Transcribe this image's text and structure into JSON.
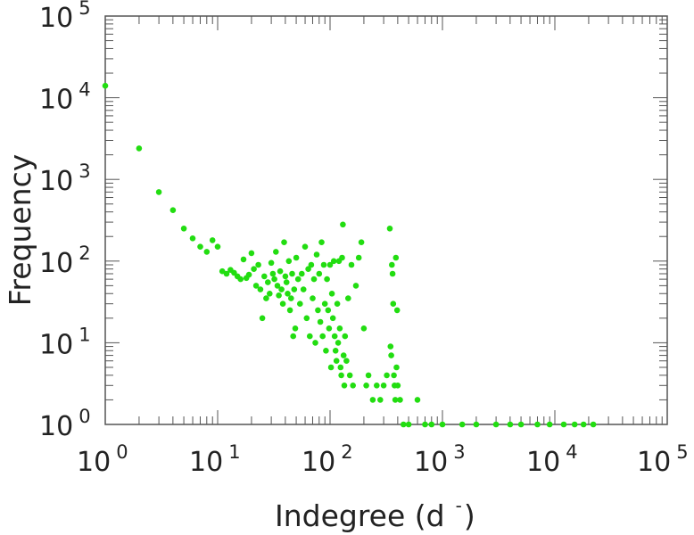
{
  "chart_data": {
    "type": "scatter",
    "title": "",
    "xlabel": "Indegree (d",
    "xlabel_superscript": "-",
    "xlabel_close": ")",
    "ylabel": "Frequency",
    "xscale": "log",
    "yscale": "log",
    "xlim": [
      1,
      100000
    ],
    "ylim": [
      1,
      100000
    ],
    "grid": false,
    "marker_color": "#22dd11",
    "x_tick_labels": [
      {
        "base": "10",
        "exp": "0"
      },
      {
        "base": "10",
        "exp": "1"
      },
      {
        "base": "10",
        "exp": "2"
      },
      {
        "base": "10",
        "exp": "3"
      },
      {
        "base": "10",
        "exp": "4"
      },
      {
        "base": "10",
        "exp": "5"
      }
    ],
    "y_tick_labels": [
      {
        "base": "10",
        "exp": "0"
      },
      {
        "base": "10",
        "exp": "1"
      },
      {
        "base": "10",
        "exp": "2"
      },
      {
        "base": "10",
        "exp": "3"
      },
      {
        "base": "10",
        "exp": "4"
      },
      {
        "base": "10",
        "exp": "5"
      }
    ],
    "points": [
      [
        1,
        14000
      ],
      [
        2,
        2400
      ],
      [
        3,
        700
      ],
      [
        4,
        420
      ],
      [
        5,
        250
      ],
      [
        6,
        190
      ],
      [
        7,
        150
      ],
      [
        8,
        130
      ],
      [
        9,
        180
      ],
      [
        10,
        150
      ],
      [
        11,
        75
      ],
      [
        12,
        70
      ],
      [
        13,
        78
      ],
      [
        14,
        72
      ],
      [
        15,
        65
      ],
      [
        16,
        60
      ],
      [
        17,
        105
      ],
      [
        18,
        62
      ],
      [
        19,
        68
      ],
      [
        20,
        125
      ],
      [
        21,
        80
      ],
      [
        22,
        50
      ],
      [
        23,
        90
      ],
      [
        24,
        45
      ],
      [
        25,
        20
      ],
      [
        26,
        65
      ],
      [
        27,
        35
      ],
      [
        28,
        55
      ],
      [
        29,
        40
      ],
      [
        30,
        95
      ],
      [
        31,
        70
      ],
      [
        32,
        60
      ],
      [
        33,
        130
      ],
      [
        34,
        50
      ],
      [
        35,
        38
      ],
      [
        36,
        75
      ],
      [
        37,
        45
      ],
      [
        38,
        30
      ],
      [
        39,
        170
      ],
      [
        40,
        65
      ],
      [
        41,
        55
      ],
      [
        42,
        40
      ],
      [
        43,
        100
      ],
      [
        44,
        25
      ],
      [
        45,
        35
      ],
      [
        46,
        70
      ],
      [
        47,
        12
      ],
      [
        48,
        45
      ],
      [
        49,
        15
      ],
      [
        50,
        110
      ],
      [
        52,
        60
      ],
      [
        54,
        30
      ],
      [
        56,
        70
      ],
      [
        58,
        45
      ],
      [
        60,
        150
      ],
      [
        62,
        20
      ],
      [
        64,
        80
      ],
      [
        66,
        12
      ],
      [
        68,
        90
      ],
      [
        70,
        35
      ],
      [
        72,
        60
      ],
      [
        74,
        10
      ],
      [
        76,
        120
      ],
      [
        78,
        25
      ],
      [
        80,
        70
      ],
      [
        82,
        18
      ],
      [
        84,
        170
      ],
      [
        86,
        12
      ],
      [
        88,
        90
      ],
      [
        90,
        30
      ],
      [
        92,
        8
      ],
      [
        94,
        60
      ],
      [
        96,
        25
      ],
      [
        98,
        15
      ],
      [
        100,
        90
      ],
      [
        102,
        5
      ],
      [
        104,
        40
      ],
      [
        106,
        20
      ],
      [
        108,
        100
      ],
      [
        110,
        12
      ],
      [
        112,
        8
      ],
      [
        114,
        6
      ],
      [
        116,
        30
      ],
      [
        118,
        10
      ],
      [
        120,
        100
      ],
      [
        122,
        15
      ],
      [
        124,
        5
      ],
      [
        126,
        4
      ],
      [
        128,
        110
      ],
      [
        130,
        280
      ],
      [
        132,
        7
      ],
      [
        134,
        3
      ],
      [
        136,
        12
      ],
      [
        140,
        6
      ],
      [
        145,
        35
      ],
      [
        150,
        4
      ],
      [
        155,
        90
      ],
      [
        160,
        3
      ],
      [
        170,
        50
      ],
      [
        180,
        110
      ],
      [
        190,
        170
      ],
      [
        200,
        15
      ],
      [
        210,
        3
      ],
      [
        220,
        4
      ],
      [
        240,
        2
      ],
      [
        260,
        3
      ],
      [
        280,
        2
      ],
      [
        300,
        3
      ],
      [
        320,
        4
      ],
      [
        340,
        250
      ],
      [
        345,
        9
      ],
      [
        350,
        7
      ],
      [
        355,
        90
      ],
      [
        360,
        70
      ],
      [
        365,
        30
      ],
      [
        370,
        4
      ],
      [
        375,
        3
      ],
      [
        380,
        2
      ],
      [
        385,
        110
      ],
      [
        390,
        5
      ],
      [
        395,
        25
      ],
      [
        400,
        3
      ],
      [
        420,
        2
      ],
      [
        450,
        1
      ],
      [
        500,
        1
      ],
      [
        600,
        2
      ],
      [
        700,
        1
      ],
      [
        800,
        1
      ],
      [
        1000,
        1
      ],
      [
        1500,
        1
      ],
      [
        2000,
        1
      ],
      [
        3000,
        1
      ],
      [
        4000,
        1
      ],
      [
        5000,
        1
      ],
      [
        7000,
        1
      ],
      [
        9000,
        1
      ],
      [
        12000,
        1
      ],
      [
        15000,
        1
      ],
      [
        18000,
        1
      ],
      [
        22000,
        1
      ]
    ]
  }
}
